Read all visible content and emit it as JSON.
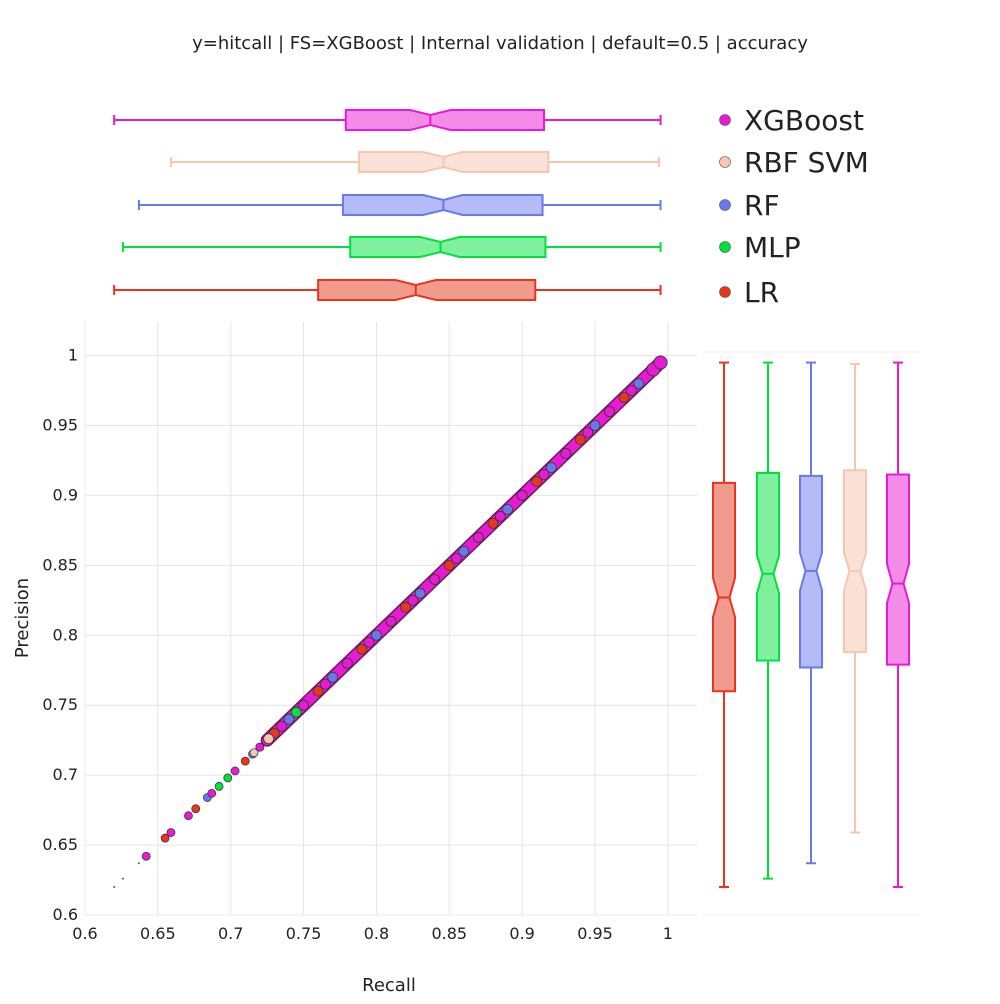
{
  "chart_data": {
    "type": "scatter",
    "title": "y=hitcall | FS=XGBoost | Internal validation | default=0.5 | accuracy",
    "xlabel": "Recall",
    "ylabel": "Precision",
    "xlim": [
      0.6,
      1.02
    ],
    "ylim": [
      0.6,
      1.024
    ],
    "xticks": [
      "0.6",
      "0.65",
      "0.7",
      "0.75",
      "0.8",
      "0.85",
      "0.9",
      "0.95",
      "1"
    ],
    "yticks": [
      "0.6",
      "0.65",
      "0.7",
      "0.75",
      "0.8",
      "0.85",
      "0.9",
      "0.95",
      "1"
    ],
    "grid": true,
    "legend_position": "top-right",
    "series": [
      {
        "name": "LR",
        "color": "#e8351e",
        "box": {
          "min": 0.62,
          "q1": 0.76,
          "median": 0.827,
          "q3": 0.909,
          "max": 0.995,
          "notch_low": 0.813,
          "notch_high": 0.841
        },
        "points": [
          [
            0.655,
            0.655
          ],
          [
            0.676,
            0.676
          ],
          [
            0.71,
            0.71
          ],
          [
            0.73,
            0.73
          ],
          [
            0.76,
            0.76
          ],
          [
            0.79,
            0.79
          ],
          [
            0.82,
            0.82
          ],
          [
            0.85,
            0.85
          ],
          [
            0.88,
            0.88
          ],
          [
            0.91,
            0.91
          ],
          [
            0.94,
            0.94
          ],
          [
            0.97,
            0.97
          ],
          [
            0.995,
            0.995
          ]
        ]
      },
      {
        "name": "MLP",
        "color": "#00e13c",
        "box": {
          "min": 0.626,
          "q1": 0.782,
          "median": 0.844,
          "q3": 0.916,
          "max": 0.995,
          "notch_low": 0.83,
          "notch_high": 0.857
        },
        "points": [
          [
            0.692,
            0.692
          ],
          [
            0.698,
            0.698
          ],
          [
            0.72,
            0.72
          ],
          [
            0.745,
            0.745
          ],
          [
            0.78,
            0.78
          ],
          [
            0.81,
            0.81
          ],
          [
            0.84,
            0.84
          ],
          [
            0.87,
            0.87
          ],
          [
            0.9,
            0.9
          ],
          [
            0.93,
            0.93
          ],
          [
            0.96,
            0.96
          ],
          [
            0.99,
            0.99
          ]
        ]
      },
      {
        "name": "RF",
        "color": "#6a78f0",
        "box": {
          "min": 0.637,
          "q1": 0.777,
          "median": 0.846,
          "q3": 0.914,
          "max": 0.995,
          "notch_low": 0.832,
          "notch_high": 0.859
        },
        "points": [
          [
            0.684,
            0.684
          ],
          [
            0.715,
            0.715
          ],
          [
            0.74,
            0.74
          ],
          [
            0.77,
            0.77
          ],
          [
            0.8,
            0.8
          ],
          [
            0.83,
            0.83
          ],
          [
            0.86,
            0.86
          ],
          [
            0.89,
            0.89
          ],
          [
            0.92,
            0.92
          ],
          [
            0.95,
            0.95
          ],
          [
            0.98,
            0.98
          ]
        ]
      },
      {
        "name": "RBF SVM",
        "color": "#f6c6b0",
        "box": {
          "min": 0.659,
          "q1": 0.788,
          "median": 0.846,
          "q3": 0.918,
          "max": 0.994,
          "notch_low": 0.832,
          "notch_high": 0.859
        },
        "points": [
          [
            0.716,
            0.716
          ],
          [
            0.726,
            0.726
          ],
          [
            0.75,
            0.75
          ],
          [
            0.78,
            0.78
          ],
          [
            0.81,
            0.81
          ],
          [
            0.84,
            0.84
          ],
          [
            0.87,
            0.87
          ],
          [
            0.9,
            0.9
          ],
          [
            0.93,
            0.93
          ],
          [
            0.96,
            0.96
          ],
          [
            0.99,
            0.99
          ]
        ]
      },
      {
        "name": "XGBoost",
        "color": "#e81ad4",
        "box": {
          "min": 0.62,
          "q1": 0.779,
          "median": 0.837,
          "q3": 0.915,
          "max": 0.995,
          "notch_low": 0.823,
          "notch_high": 0.851
        },
        "points": [
          [
            0.642,
            0.642
          ],
          [
            0.659,
            0.659
          ],
          [
            0.671,
            0.671
          ],
          [
            0.687,
            0.687
          ],
          [
            0.703,
            0.703
          ],
          [
            0.72,
            0.72
          ],
          [
            0.735,
            0.735
          ],
          [
            0.75,
            0.75
          ],
          [
            0.765,
            0.765
          ],
          [
            0.78,
            0.78
          ],
          [
            0.795,
            0.795
          ],
          [
            0.81,
            0.81
          ],
          [
            0.825,
            0.825
          ],
          [
            0.84,
            0.84
          ],
          [
            0.855,
            0.855
          ],
          [
            0.87,
            0.87
          ],
          [
            0.885,
            0.885
          ],
          [
            0.9,
            0.9
          ],
          [
            0.915,
            0.915
          ],
          [
            0.93,
            0.93
          ],
          [
            0.945,
            0.945
          ],
          [
            0.96,
            0.96
          ],
          [
            0.975,
            0.975
          ],
          [
            0.99,
            0.99
          ],
          [
            0.995,
            0.995
          ]
        ]
      }
    ]
  }
}
